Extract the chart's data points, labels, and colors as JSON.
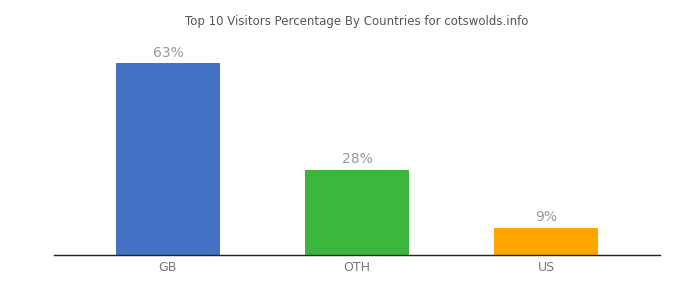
{
  "categories": [
    "GB",
    "OTH",
    "US"
  ],
  "values": [
    63,
    28,
    9
  ],
  "bar_colors": [
    "#4472C4",
    "#3CB53C",
    "#FFA500"
  ],
  "labels": [
    "63%",
    "28%",
    "9%"
  ],
  "title": "Top 10 Visitors Percentage By Countries for cotswolds.info",
  "background_color": "#ffffff",
  "ylim": [
    0,
    72
  ],
  "bar_width": 0.55,
  "label_fontsize": 10,
  "tick_fontsize": 9,
  "label_color": "#999999",
  "tick_color": "#777777"
}
